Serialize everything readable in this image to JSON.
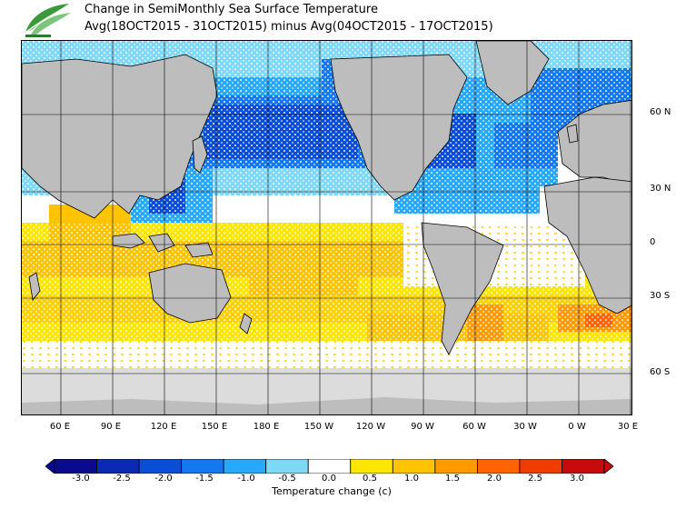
{
  "header": {
    "title": "Change in SemiMonthly Sea Surface Temperature",
    "subtitle": "Avg(18OCT2015 - 31OCT2015) minus Avg(04OCT2015 - 17OCT2015)"
  },
  "map": {
    "lat_labels": [
      "60 N",
      "30 N",
      "0",
      "30 S",
      "60 S"
    ],
    "lon_labels": [
      "60 E",
      "90 E",
      "120 E",
      "150 E",
      "180 E",
      "150 W",
      "120 W",
      "90 W",
      "60 W",
      "30 W",
      "0 W",
      "30 E"
    ],
    "land_color": "#bdbdbd",
    "ice_color": "#dcdcdc"
  },
  "colorbar": {
    "title": "Temperature change  (c)",
    "ticks": [
      "-3.0",
      "-2.5",
      "-2.0",
      "-1.5",
      "-1.0",
      "-0.5",
      "0.0",
      "0.5",
      "1.0",
      "1.5",
      "2.0",
      "2.5",
      "3.0"
    ],
    "colors": [
      "#0a0a8c",
      "#0a2ab4",
      "#0a4ed8",
      "#1478f0",
      "#28a8fa",
      "#7fd8f8",
      "#ffffff",
      "#ffe600",
      "#ffc400",
      "#ff9a00",
      "#ff6400",
      "#f03c00",
      "#c80a0a"
    ]
  },
  "logo": {
    "icon": "leaf-logo-icon"
  }
}
